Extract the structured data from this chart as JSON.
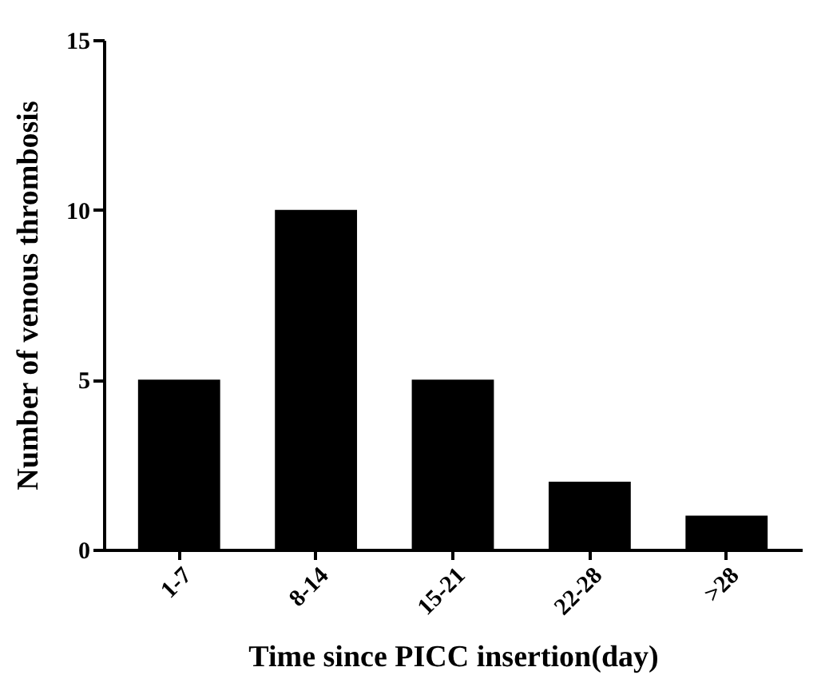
{
  "chart_data": {
    "type": "bar",
    "xlabel": "Time since PICC insertion(day)",
    "ylabel": "Number of venous thrombosis",
    "categories": [
      "1-7",
      "8-14",
      "15-21",
      "22-28",
      ">28"
    ],
    "values": [
      5,
      10,
      5,
      2,
      1
    ],
    "color": "#000000",
    "ylim": [
      0,
      15
    ],
    "yticks": [
      0,
      5,
      10,
      15
    ],
    "grid": false
  }
}
